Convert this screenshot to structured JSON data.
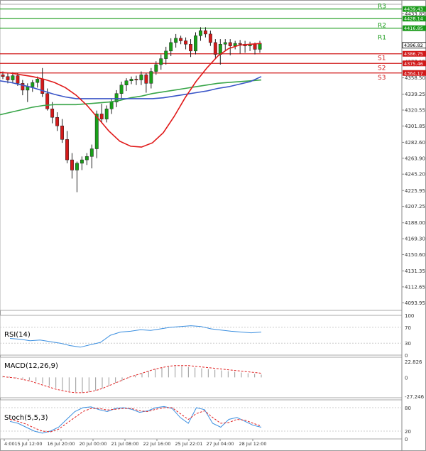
{
  "chart_data": {
    "type": "candlestick",
    "main": {
      "ylim": [
        4085,
        4445
      ],
      "y_ticks": [
        "4433.85",
        "4416.85",
        "4396.82",
        "4377.15",
        "4358.50",
        "4339.25",
        "4320.55",
        "4301.85",
        "4282.60",
        "4263.90",
        "4245.20",
        "4225.95",
        "4207.25",
        "4188.00",
        "4169.30",
        "4150.60",
        "4131.35",
        "4112.65",
        "4093.95"
      ],
      "pivot_levels": [
        {
          "label": "R3",
          "value": 4439.43,
          "tag": "4439.43",
          "color": "#1a9b1a"
        },
        {
          "label": "",
          "value": 4428.14,
          "tag": "4428.14",
          "color": "#1a9b1a"
        },
        {
          "label": "R2",
          "value": 4416.85,
          "tag": "4416.85",
          "color": "#1a9b1a"
        },
        {
          "label": "S1",
          "value": 4386.75,
          "tag": "4386.75",
          "color": "#d11a1a"
        },
        {
          "label": "S2",
          "value": 4375.46,
          "tag": "4375.46",
          "color": "#d11a1a"
        },
        {
          "label": "S3",
          "value": 4364.17,
          "tag": "4364.17",
          "color": "#d11a1a"
        }
      ],
      "r1_label": "R1",
      "current_price": "4396.82",
      "candles": [
        [
          4362,
          4366,
          4357,
          4360
        ],
        [
          4360,
          4364,
          4352,
          4356
        ],
        [
          4356,
          4365,
          4352,
          4361
        ],
        [
          4361,
          4364,
          4349,
          4352
        ],
        [
          4352,
          4356,
          4338,
          4344
        ],
        [
          4344,
          4352,
          4330,
          4348
        ],
        [
          4348,
          4356,
          4342,
          4353
        ],
        [
          4353,
          4360,
          4347,
          4357
        ],
        [
          4357,
          4370,
          4336,
          4340
        ],
        [
          4340,
          4346,
          4320,
          4322
        ],
        [
          4322,
          4330,
          4305,
          4312
        ],
        [
          4312,
          4318,
          4296,
          4302
        ],
        [
          4302,
          4310,
          4282,
          4286
        ],
        [
          4286,
          4296,
          4258,
          4262
        ],
        [
          4262,
          4270,
          4240,
          4250
        ],
        [
          4250,
          4260,
          4224,
          4258
        ],
        [
          4258,
          4266,
          4250,
          4262
        ],
        [
          4262,
          4270,
          4256,
          4266
        ],
        [
          4266,
          4280,
          4252,
          4275
        ],
        [
          4275,
          4320,
          4264,
          4316
        ],
        [
          4316,
          4328,
          4306,
          4310
        ],
        [
          4310,
          4326,
          4306,
          4322
        ],
        [
          4322,
          4334,
          4316,
          4330
        ],
        [
          4330,
          4344,
          4324,
          4340
        ],
        [
          4340,
          4354,
          4334,
          4350
        ],
        [
          4350,
          4358,
          4343,
          4355
        ],
        [
          4355,
          4360,
          4351,
          4357
        ],
        [
          4357,
          4361,
          4350,
          4356
        ],
        [
          4356,
          4366,
          4350,
          4362
        ],
        [
          4362,
          4364,
          4341,
          4352
        ],
        [
          4352,
          4370,
          4346,
          4366
        ],
        [
          4366,
          4378,
          4362,
          4374
        ],
        [
          4374,
          4386,
          4368,
          4381
        ],
        [
          4381,
          4395,
          4374,
          4390
        ],
        [
          4390,
          4405,
          4384,
          4400
        ],
        [
          4400,
          4410,
          4394,
          4405
        ],
        [
          4405,
          4408,
          4398,
          4402
        ],
        [
          4402,
          4406,
          4392,
          4398
        ],
        [
          4398,
          4404,
          4383,
          4390
        ],
        [
          4390,
          4412,
          4386,
          4408
        ],
        [
          4408,
          4418,
          4402,
          4414
        ],
        [
          4414,
          4418,
          4406,
          4410
        ],
        [
          4410,
          4414,
          4396,
          4400
        ],
        [
          4400,
          4404,
          4382,
          4386
        ],
        [
          4386,
          4404,
          4374,
          4398
        ],
        [
          4398,
          4404,
          4390,
          4400
        ],
        [
          4400,
          4404,
          4385,
          4396
        ],
        [
          4396,
          4402,
          4392,
          4399
        ],
        [
          4399,
          4403,
          4387,
          4398
        ],
        [
          4398,
          4402,
          4388,
          4396
        ],
        [
          4396,
          4401,
          4390,
          4398
        ],
        [
          4398,
          4400,
          4386,
          4392
        ],
        [
          4392,
          4402,
          4388,
          4399
        ]
      ],
      "red_ma": [
        4365,
        4364,
        4362,
        4360,
        4357,
        4353,
        4347,
        4338,
        4326,
        4311,
        4296,
        4284,
        4278,
        4277,
        4282,
        4294,
        4313,
        4335,
        4354,
        4370,
        4384,
        4393,
        4397,
        4398,
        4399
      ],
      "blue_ma": [
        4355,
        4353,
        4350,
        4347,
        4343,
        4339,
        4336,
        4334,
        4334,
        4334,
        4334,
        4334,
        4334,
        4334,
        4334,
        4335,
        4337,
        4339,
        4341,
        4343,
        4346,
        4348,
        4351,
        4354,
        4360
      ],
      "green_ma": [
        4315,
        4318,
        4321,
        4324,
        4326,
        4327,
        4327,
        4327,
        4328,
        4329,
        4330,
        4332,
        4335,
        4337,
        4340,
        4342,
        4344,
        4346,
        4348,
        4350,
        4352,
        4353,
        4354,
        4355,
        4356
      ]
    },
    "rsi": {
      "label": "RSI(14)",
      "ticks": [
        "100",
        "70",
        "30",
        "0"
      ],
      "values": [
        42,
        40,
        36,
        38,
        34,
        30,
        24,
        20,
        26,
        32,
        50,
        58,
        60,
        64,
        62,
        66,
        70,
        72,
        74,
        72,
        66,
        63,
        60,
        58,
        56,
        58
      ]
    },
    "macd": {
      "label": "MACD(12,26,9)",
      "ticks": [
        "22.826",
        "0",
        "-27.246"
      ],
      "histogram": [
        2,
        1,
        -1,
        -2,
        -4,
        -6,
        -9,
        -12,
        -15,
        -18,
        -20,
        -21,
        -22,
        -21,
        -19,
        -16,
        -12,
        -8,
        -5,
        -1,
        3,
        6,
        9,
        12,
        14,
        15,
        16,
        16,
        15,
        14,
        13,
        12,
        11,
        10,
        9,
        8,
        7,
        6,
        5,
        4
      ],
      "signal": [
        1,
        0,
        -1,
        -3,
        -5,
        -8,
        -11,
        -14,
        -17,
        -19,
        -21,
        -22,
        -22,
        -21,
        -19,
        -16,
        -12,
        -8,
        -4,
        0,
        3,
        6,
        9,
        12,
        14,
        16,
        17,
        17,
        17,
        16,
        15,
        14,
        13,
        12,
        11,
        10,
        9,
        8,
        7,
        6
      ]
    },
    "stoch": {
      "label": "Stoch(5,5,3)",
      "ticks": [
        "80",
        "20",
        "0"
      ],
      "k": [
        45,
        40,
        30,
        20,
        15,
        20,
        30,
        50,
        70,
        80,
        82,
        75,
        70,
        78,
        80,
        76,
        68,
        72,
        80,
        83,
        78,
        55,
        40,
        80,
        75,
        40,
        30,
        50,
        55,
        45,
        35,
        30
      ],
      "d": [
        50,
        45,
        38,
        28,
        20,
        18,
        25,
        40,
        55,
        70,
        78,
        78,
        74,
        76,
        78,
        78,
        72,
        70,
        76,
        80,
        80,
        65,
        50,
        65,
        72,
        55,
        40,
        42,
        50,
        48,
        40,
        33
      ]
    },
    "x_ticks": [
      "4:00",
      "15 Jul 12:00",
      "16 Jul 20:00",
      "20 Jul 00:00",
      "21 Jul 08:00",
      "22 Jul 16:00",
      "25 Jul 22:01",
      "27 Jul 04:00",
      "28 Jul 12:00"
    ]
  }
}
